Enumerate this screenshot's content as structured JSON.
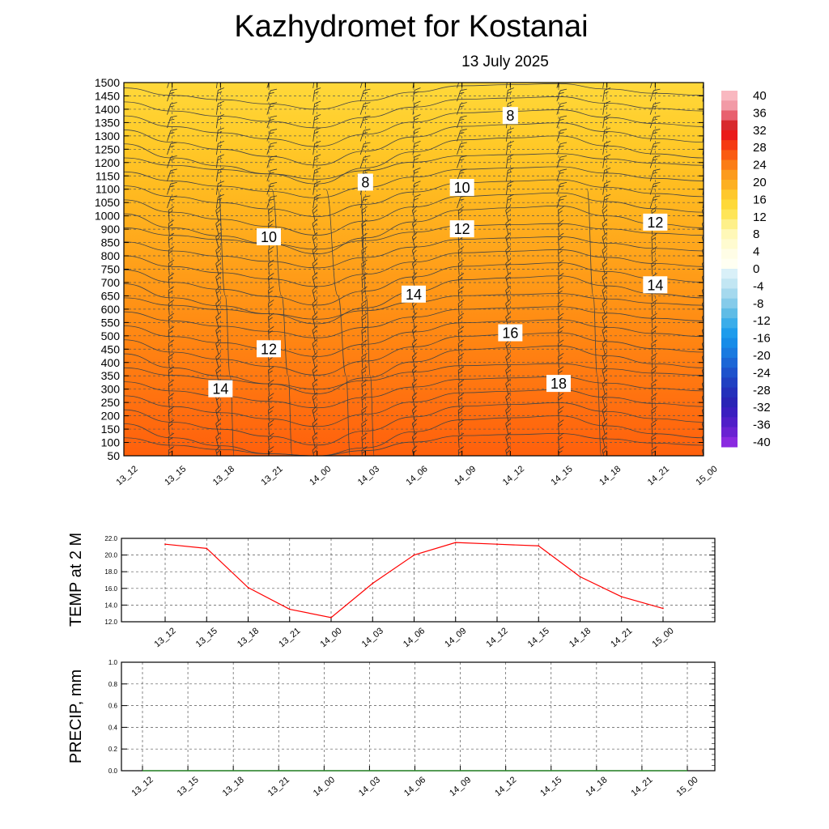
{
  "header": {
    "title": "Kazhydromet  for Kostanai",
    "date": "13 July 2025"
  },
  "chart_data": [
    {
      "type": "heatmap",
      "name": "temperature cross-section",
      "x_ticks": [
        "13_12",
        "13_15",
        "13_18",
        "13_21",
        "14_00",
        "14_03",
        "14_06",
        "14_09",
        "14_12",
        "14_15",
        "14_18",
        "14_21",
        "15_00"
      ],
      "y_ticks": [
        "1500",
        "1450",
        "1400",
        "1350",
        "1300",
        "1250",
        "1200",
        "1150",
        "1100",
        "1050",
        "1000",
        "900",
        "850",
        "800",
        "750",
        "700",
        "650",
        "600",
        "550",
        "500",
        "450",
        "400",
        "350",
        "300",
        "250",
        "200",
        "150",
        "100",
        "50"
      ],
      "colorbar_labels": [
        "40",
        "36",
        "32",
        "28",
        "24",
        "20",
        "16",
        "12",
        "8",
        "4",
        "0",
        "-4",
        "-8",
        "-12",
        "-16",
        "-20",
        "-24",
        "-28",
        "-32",
        "-36",
        "-40"
      ],
      "colorbar_colors": {
        "positive": [
          "#f9b8c0",
          "#f29aa6",
          "#e8606e",
          "#d82a2e",
          "#ea1a1a",
          "#f53a12",
          "#fa5b12",
          "#fb7d17",
          "#fc9b1d",
          "#fdb022",
          "#fec82c",
          "#fed938",
          "#fee558",
          "#fef08a",
          "#fff8b8",
          "#fffbd0",
          "#fffde6",
          "#fffff2"
        ],
        "negative": [
          "#d9f0f8",
          "#c2e6f3",
          "#a5d9ee",
          "#85cbea",
          "#5fbce6",
          "#3aadea",
          "#1e9cec",
          "#178ce8",
          "#1a7ae0",
          "#1c66d6",
          "#1e52cc",
          "#2040c2",
          "#2430bb",
          "#2a24b6",
          "#3a1ec0",
          "#501ec8",
          "#6a22d2",
          "#8a2ae0"
        ]
      },
      "field_colors_top_to_bottom": [
        "#ffd83a",
        "#ffcc2a",
        "#ffbb20",
        "#ffa81c",
        "#ff9516",
        "#ff8212",
        "#ff7010",
        "#ff600c"
      ],
      "contour_labels": [
        {
          "value": "8",
          "time": "14_03",
          "level": "1125"
        },
        {
          "value": "8",
          "time": "14_12",
          "level": "1375"
        },
        {
          "value": "10",
          "time": "13_21",
          "level": "870"
        },
        {
          "value": "10",
          "time": "14_09",
          "level": "1105"
        },
        {
          "value": "12",
          "time": "14_09",
          "level": "900"
        },
        {
          "value": "12",
          "time": "14_21",
          "level": "950"
        },
        {
          "value": "12",
          "time": "13_21",
          "level": "450"
        },
        {
          "value": "14",
          "time": "13_18",
          "level": "300"
        },
        {
          "value": "14",
          "time": "14_06",
          "level": "655"
        },
        {
          "value": "14",
          "time": "14_21",
          "level": "690"
        },
        {
          "value": "16",
          "time": "14_12",
          "level": "510"
        },
        {
          "value": "18",
          "time": "14_15",
          "level": "320"
        }
      ]
    },
    {
      "type": "line",
      "ylabel": "TEMP at 2 M",
      "categories": [
        "13_12",
        "13_15",
        "13_18",
        "13_21",
        "14_00",
        "14_03",
        "14_06",
        "14_09",
        "14_12",
        "14_15",
        "14_18",
        "14_21",
        "15_00"
      ],
      "ylim": [
        12.0,
        22.0
      ],
      "y_ticks": [
        "12.0",
        "14.0",
        "16.0",
        "18.0",
        "20.0",
        "22.0"
      ],
      "series": [
        {
          "color": "#ff0000",
          "values": [
            21.3,
            20.8,
            16.1,
            13.5,
            12.5,
            16.6,
            20.0,
            21.5,
            21.3,
            21.1,
            17.4,
            15.0,
            13.6
          ]
        }
      ]
    },
    {
      "type": "bar",
      "ylabel": "PRECIP, mm",
      "categories": [
        "13_12",
        "13_15",
        "13_18",
        "13_21",
        "14_00",
        "14_03",
        "14_06",
        "14_09",
        "14_12",
        "14_15",
        "14_18",
        "14_21",
        "15_00"
      ],
      "ylim": [
        0.0,
        1.0
      ],
      "y_ticks": [
        "0.0",
        "0.2",
        "0.4",
        "0.6",
        "0.8",
        "1.0"
      ],
      "series": [
        {
          "color": "#2e8b2e",
          "values": [
            0,
            0,
            0,
            0,
            0,
            0,
            0,
            0,
            0,
            0,
            0,
            0,
            0
          ]
        }
      ]
    }
  ]
}
